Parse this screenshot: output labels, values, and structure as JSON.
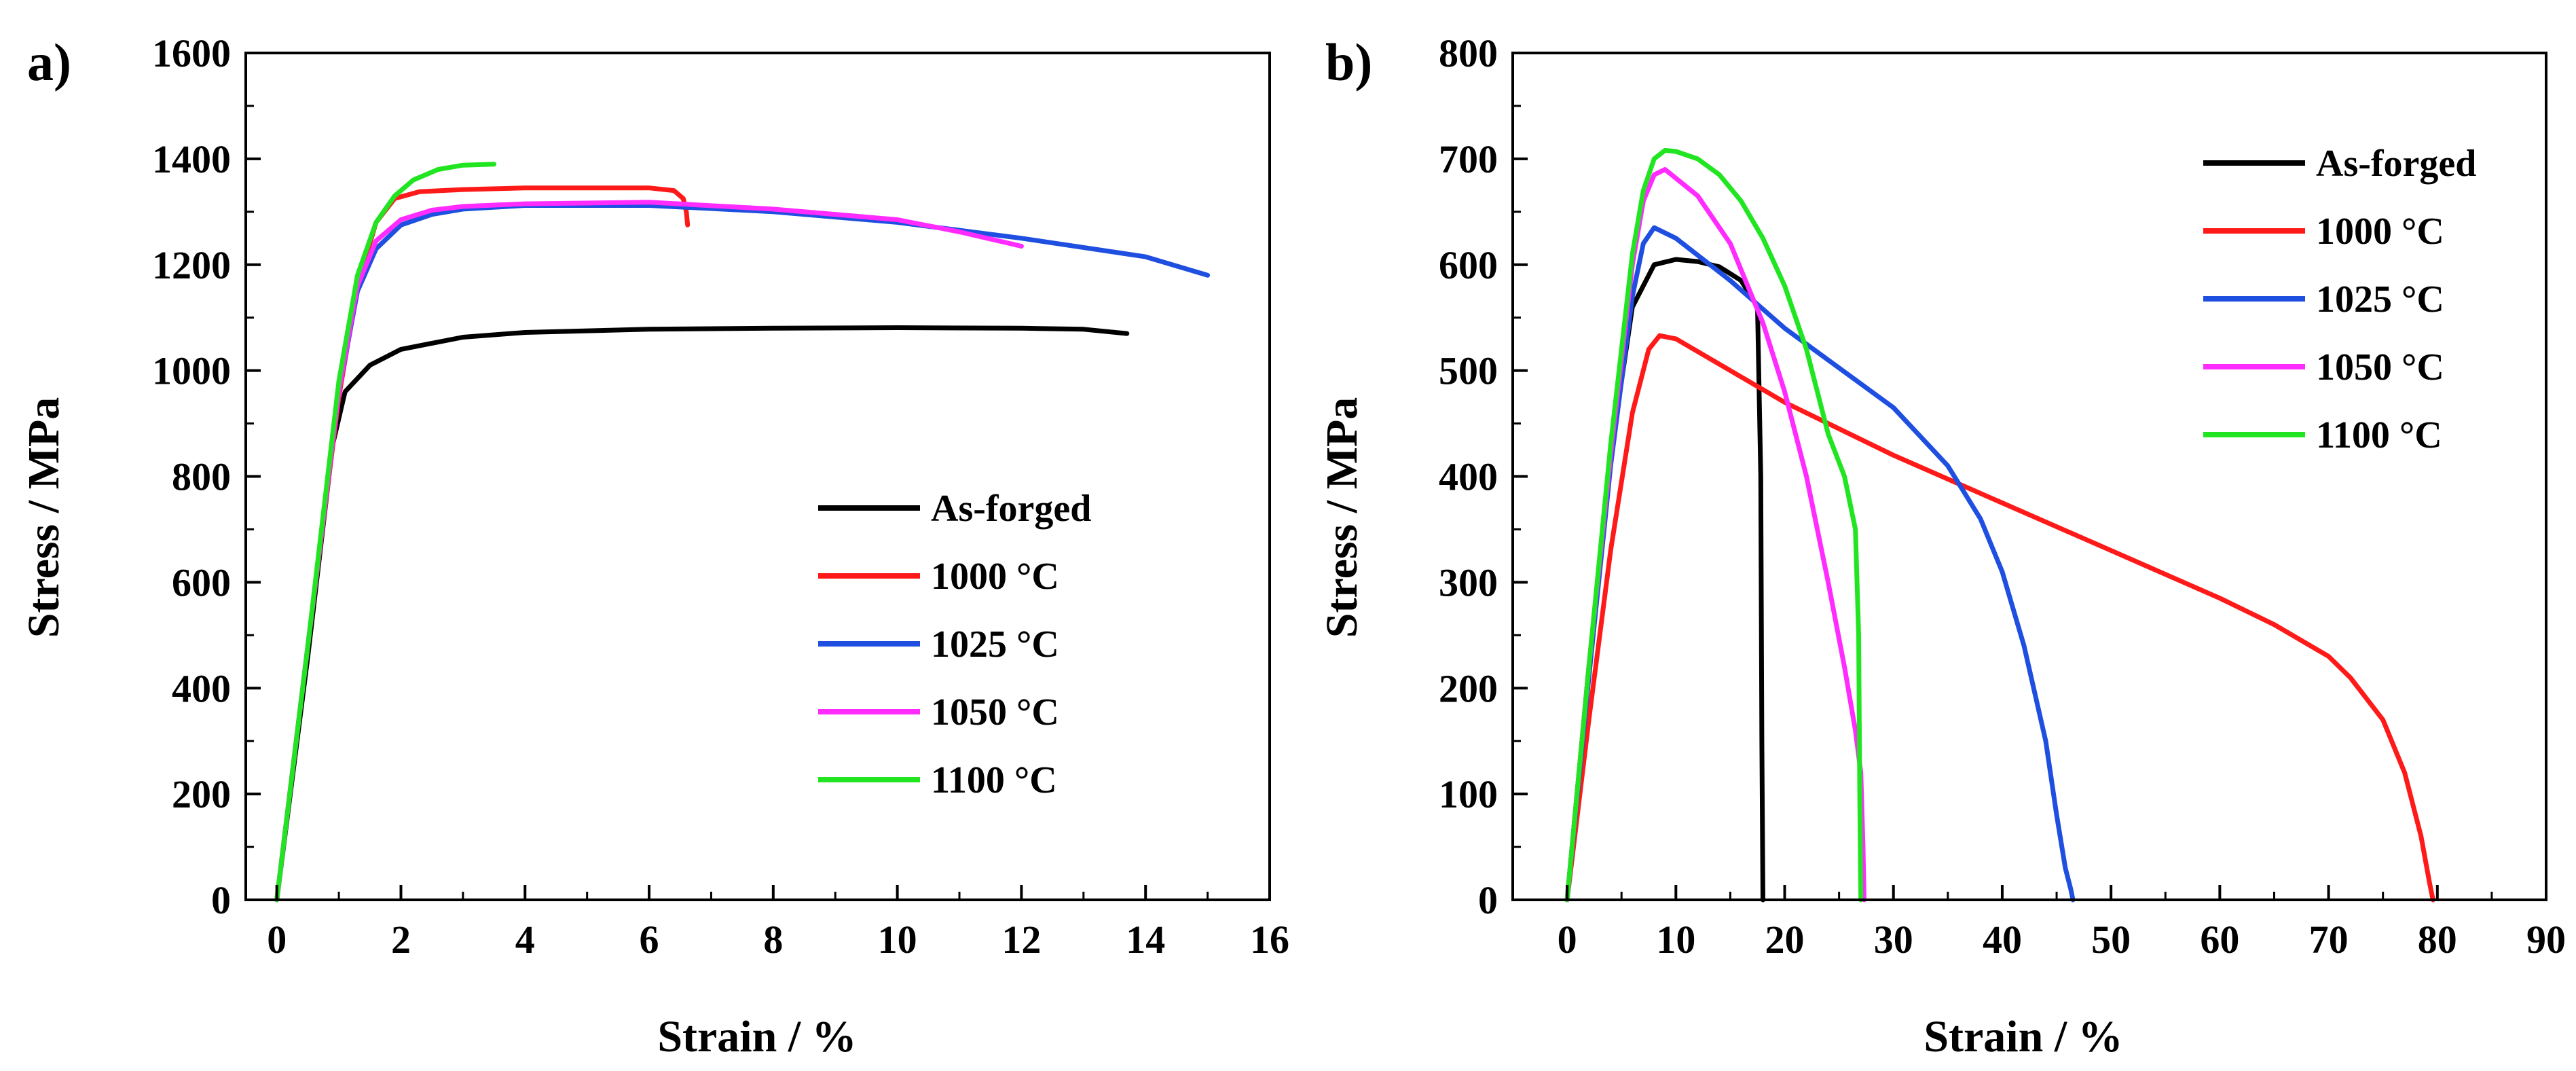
{
  "colors": {
    "As-forged": "#000000",
    "1000 °C": "#ff1a1a",
    "1025 °C": "#1f4fe0",
    "1050 °C": "#ff2bff",
    "1100 °C": "#22e522"
  },
  "chart_data": [
    {
      "panel_label": "a)",
      "type": "line",
      "title": "",
      "xlabel": "Strain / %",
      "ylabel": "Stress / MPa",
      "xlim": [
        -0.5,
        16
      ],
      "ylim": [
        0,
        1600
      ],
      "xticks": [
        0,
        2,
        4,
        6,
        8,
        10,
        12,
        14,
        16
      ],
      "yticks": [
        0,
        200,
        400,
        600,
        800,
        1000,
        1200,
        1400,
        1600
      ],
      "legend_position": "bottom-right",
      "grid": false,
      "series": [
        {
          "name": "As-forged",
          "x": [
            0,
            0.5,
            0.9,
            1.1,
            1.5,
            2,
            3,
            4,
            6,
            8,
            10,
            12,
            13,
            13.7
          ],
          "y": [
            0,
            460,
            860,
            960,
            1010,
            1040,
            1063,
            1072,
            1078,
            1080,
            1081,
            1080,
            1078,
            1070
          ]
        },
        {
          "name": "1000 °C",
          "x": [
            0,
            0.5,
            1,
            1.3,
            1.6,
            1.9,
            2.3,
            3,
            4,
            5,
            6,
            6.4,
            6.55,
            6.6,
            6.62
          ],
          "y": [
            0,
            480,
            950,
            1160,
            1280,
            1325,
            1338,
            1342,
            1345,
            1345,
            1345,
            1340,
            1325,
            1300,
            1275
          ]
        },
        {
          "name": "1025 °C",
          "x": [
            0,
            0.5,
            1,
            1.3,
            1.6,
            2,
            2.5,
            3,
            4,
            6,
            8,
            10,
            12,
            14,
            15
          ],
          "y": [
            0,
            480,
            960,
            1150,
            1230,
            1275,
            1295,
            1305,
            1312,
            1312,
            1300,
            1280,
            1250,
            1215,
            1180
          ]
        },
        {
          "name": "1050 °C",
          "x": [
            0,
            0.5,
            1,
            1.3,
            1.6,
            2,
            2.5,
            3,
            4,
            6,
            8,
            10,
            11,
            12
          ],
          "y": [
            0,
            480,
            960,
            1160,
            1245,
            1285,
            1303,
            1310,
            1315,
            1318,
            1305,
            1285,
            1262,
            1235
          ]
        },
        {
          "name": "1100 °C",
          "x": [
            0,
            0.5,
            1,
            1.3,
            1.6,
            1.9,
            2.2,
            2.6,
            3,
            3.5
          ],
          "y": [
            0,
            480,
            980,
            1180,
            1280,
            1330,
            1360,
            1380,
            1388,
            1390
          ]
        }
      ]
    },
    {
      "panel_label": "b)",
      "type": "line",
      "title": "",
      "xlabel": "Strain / %",
      "ylabel": "Stress / MPa",
      "xlim": [
        -5,
        90
      ],
      "ylim": [
        0,
        800
      ],
      "xticks": [
        0,
        10,
        20,
        30,
        40,
        50,
        60,
        70,
        80,
        90
      ],
      "yticks": [
        0,
        100,
        200,
        300,
        400,
        500,
        600,
        700,
        800
      ],
      "legend_position": "top-right",
      "grid": false,
      "series": [
        {
          "name": "As-forged",
          "x": [
            0,
            2,
            4,
            6,
            8,
            10,
            12,
            14,
            16,
            17.5,
            17.8,
            17.9,
            18
          ],
          "y": [
            0,
            220,
            420,
            560,
            600,
            605,
            603,
            598,
            585,
            560,
            400,
            150,
            0
          ]
        },
        {
          "name": "1000 °C",
          "x": [
            0,
            2,
            4,
            6,
            7.5,
            8.5,
            10,
            15,
            20,
            30,
            40,
            50,
            60,
            65,
            70,
            72,
            75,
            77,
            78.5,
            79.3,
            79.6
          ],
          "y": [
            0,
            170,
            330,
            460,
            520,
            533,
            530,
            500,
            470,
            420,
            375,
            330,
            285,
            260,
            230,
            210,
            170,
            120,
            60,
            15,
            0
          ]
        },
        {
          "name": "1025 °C",
          "x": [
            0,
            2,
            4,
            6,
            7,
            8,
            10,
            15,
            20,
            30,
            35,
            38,
            40,
            42,
            44,
            45,
            45.8,
            46.3,
            46.5
          ],
          "y": [
            0,
            210,
            410,
            570,
            620,
            635,
            625,
            585,
            540,
            465,
            410,
            360,
            310,
            240,
            150,
            80,
            30,
            10,
            0
          ]
        },
        {
          "name": "1050 °C",
          "x": [
            0,
            2,
            4,
            6,
            7,
            8,
            9,
            12,
            15,
            18,
            20,
            22,
            24,
            25.5,
            26.5,
            27,
            27.2,
            27.3
          ],
          "y": [
            0,
            220,
            420,
            600,
            660,
            685,
            690,
            665,
            620,
            545,
            480,
            400,
            300,
            220,
            160,
            120,
            50,
            0
          ]
        },
        {
          "name": "1100 °C",
          "x": [
            0,
            2,
            4,
            6,
            7,
            8,
            9,
            10,
            12,
            14,
            16,
            18,
            20,
            22,
            24,
            25.5,
            26.5,
            26.8,
            26.9,
            27
          ],
          "y": [
            0,
            220,
            430,
            610,
            670,
            700,
            708,
            707,
            700,
            685,
            660,
            625,
            580,
            520,
            440,
            400,
            350,
            250,
            100,
            0
          ]
        }
      ]
    }
  ]
}
